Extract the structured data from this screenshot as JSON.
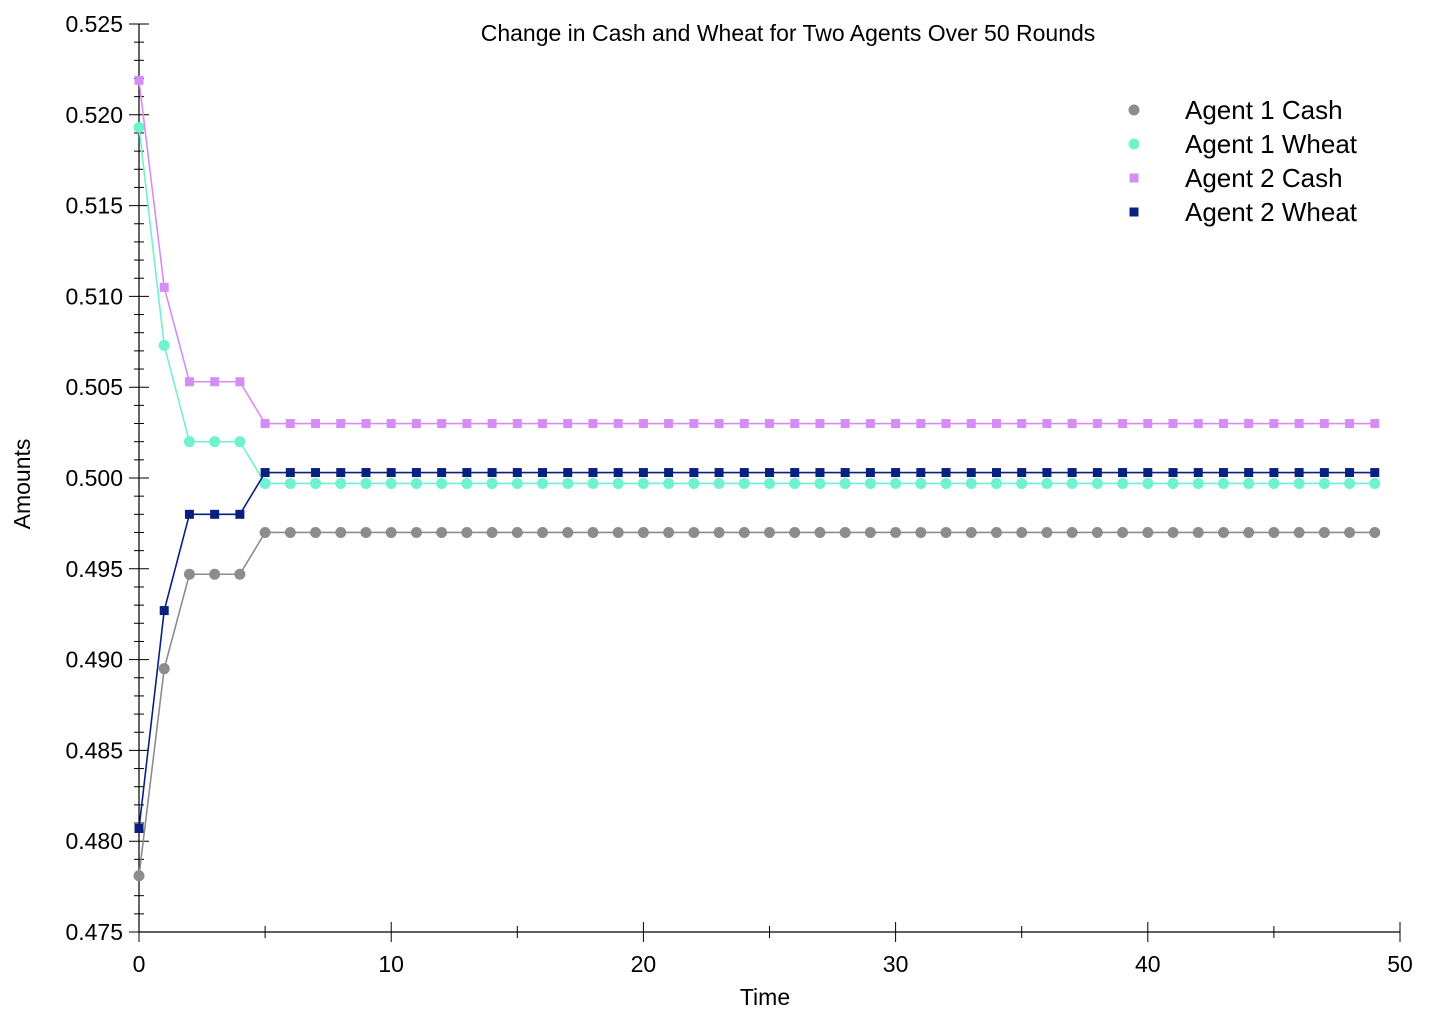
{
  "chart_data": {
    "type": "line",
    "title": "Change in Cash and Wheat for Two Agents Over 50 Rounds",
    "xlabel": "Time",
    "ylabel": "Amounts",
    "xlim": [
      0,
      50
    ],
    "ylim": [
      0.475,
      0.525
    ],
    "x_ticks": [
      "0",
      "10",
      "20",
      "30",
      "40",
      "50"
    ],
    "y_ticks": [
      "0.475",
      "0.480",
      "0.485",
      "0.490",
      "0.495",
      "0.500",
      "0.505",
      "0.510",
      "0.515",
      "0.520",
      "0.525"
    ],
    "grid": false,
    "legend_position": "top-right",
    "x": [
      0,
      1,
      2,
      3,
      4,
      5,
      6,
      7,
      8,
      9,
      10,
      11,
      12,
      13,
      14,
      15,
      16,
      17,
      18,
      19,
      20,
      21,
      22,
      23,
      24,
      25,
      26,
      27,
      28,
      29,
      30,
      31,
      32,
      33,
      34,
      35,
      36,
      37,
      38,
      39,
      40,
      41,
      42,
      43,
      44,
      45,
      46,
      47,
      48,
      49
    ],
    "series": [
      {
        "name": "Agent 1 Cash",
        "color": "#8c8c8c",
        "marker": "circle",
        "values": [
          0.4781,
          0.4895,
          0.4947,
          0.4947,
          0.4947,
          0.497,
          0.497,
          0.497,
          0.497,
          0.497,
          0.497,
          0.497,
          0.497,
          0.497,
          0.497,
          0.497,
          0.497,
          0.497,
          0.497,
          0.497,
          0.497,
          0.497,
          0.497,
          0.497,
          0.497,
          0.497,
          0.497,
          0.497,
          0.497,
          0.497,
          0.497,
          0.497,
          0.497,
          0.497,
          0.497,
          0.497,
          0.497,
          0.497,
          0.497,
          0.497,
          0.497,
          0.497,
          0.497,
          0.497,
          0.497,
          0.497,
          0.497,
          0.497,
          0.497,
          0.497
        ]
      },
      {
        "name": "Agent 1 Wheat",
        "color": "#6ff2cf",
        "marker": "circle",
        "values": [
          0.5193,
          0.5073,
          0.502,
          0.502,
          0.502,
          0.4997,
          0.4997,
          0.4997,
          0.4997,
          0.4997,
          0.4997,
          0.4997,
          0.4997,
          0.4997,
          0.4997,
          0.4997,
          0.4997,
          0.4997,
          0.4997,
          0.4997,
          0.4997,
          0.4997,
          0.4997,
          0.4997,
          0.4997,
          0.4997,
          0.4997,
          0.4997,
          0.4997,
          0.4997,
          0.4997,
          0.4997,
          0.4997,
          0.4997,
          0.4997,
          0.4997,
          0.4997,
          0.4997,
          0.4997,
          0.4997,
          0.4997,
          0.4997,
          0.4997,
          0.4997,
          0.4997,
          0.4997,
          0.4997,
          0.4997,
          0.4997,
          0.4997
        ]
      },
      {
        "name": "Agent 2 Cash",
        "color": "#d68cf5",
        "marker": "square",
        "values": [
          0.5219,
          0.5105,
          0.5053,
          0.5053,
          0.5053,
          0.503,
          0.503,
          0.503,
          0.503,
          0.503,
          0.503,
          0.503,
          0.503,
          0.503,
          0.503,
          0.503,
          0.503,
          0.503,
          0.503,
          0.503,
          0.503,
          0.503,
          0.503,
          0.503,
          0.503,
          0.503,
          0.503,
          0.503,
          0.503,
          0.503,
          0.503,
          0.503,
          0.503,
          0.503,
          0.503,
          0.503,
          0.503,
          0.503,
          0.503,
          0.503,
          0.503,
          0.503,
          0.503,
          0.503,
          0.503,
          0.503,
          0.503,
          0.503,
          0.503,
          0.503
        ]
      },
      {
        "name": "Agent 2 Wheat",
        "color": "#0a2080",
        "marker": "square",
        "values": [
          0.4807,
          0.4927,
          0.498,
          0.498,
          0.498,
          0.5003,
          0.5003,
          0.5003,
          0.5003,
          0.5003,
          0.5003,
          0.5003,
          0.5003,
          0.5003,
          0.5003,
          0.5003,
          0.5003,
          0.5003,
          0.5003,
          0.5003,
          0.5003,
          0.5003,
          0.5003,
          0.5003,
          0.5003,
          0.5003,
          0.5003,
          0.5003,
          0.5003,
          0.5003,
          0.5003,
          0.5003,
          0.5003,
          0.5003,
          0.5003,
          0.5003,
          0.5003,
          0.5003,
          0.5003,
          0.5003,
          0.5003,
          0.5003,
          0.5003,
          0.5003,
          0.5003,
          0.5003,
          0.5003,
          0.5003,
          0.5003,
          0.5003
        ]
      }
    ]
  }
}
